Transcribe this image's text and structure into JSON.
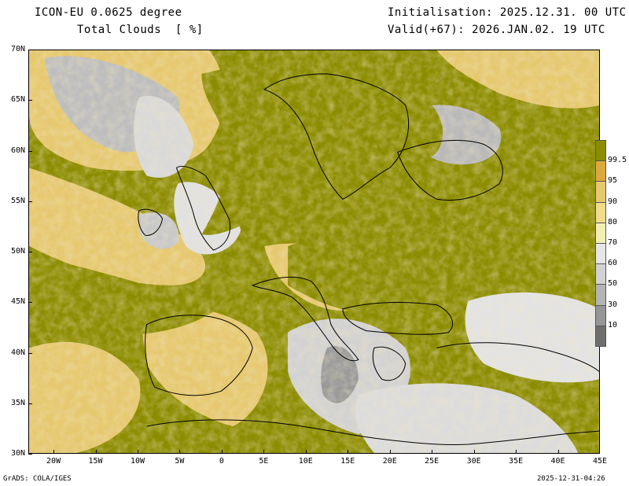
{
  "header": {
    "model": "ICON-EU 0.0625 degree",
    "variable": "Total Clouds  [ %]",
    "initialisation": "Initialisation: 2025.12.31. 00 UTC",
    "valid": "Valid(+67): 2026.JAN.02. 19 UTC"
  },
  "axes": {
    "lat_labels": [
      "70N",
      "65N",
      "60N",
      "55N",
      "50N",
      "45N",
      "40N",
      "35N",
      "30N"
    ],
    "lat_values": [
      70,
      65,
      60,
      55,
      50,
      45,
      40,
      35,
      30
    ],
    "lon_labels": [
      "20W",
      "15W",
      "10W",
      "5W",
      "0",
      "5E",
      "10E",
      "15E",
      "20E",
      "25E",
      "30E",
      "35E",
      "40E",
      "45E"
    ],
    "lon_values": [
      -20,
      -15,
      -10,
      -5,
      0,
      5,
      10,
      15,
      20,
      25,
      30,
      35,
      40,
      45
    ],
    "lat_range": [
      30,
      70
    ],
    "lon_range": [
      -23,
      45
    ]
  },
  "colorbar": {
    "levels": [
      "10",
      "30",
      "50",
      "60",
      "70",
      "80",
      "90",
      "95",
      "99.5"
    ],
    "colors": [
      "#6e6e6e",
      "#969696",
      "#b4b4b4",
      "#d2d2d2",
      "#e6e6e6",
      "#f0f0b4",
      "#f0dc8c",
      "#e6c86e",
      "#dcaa3c",
      "#8c8c00"
    ]
  },
  "footer": {
    "left": "GrADS: COLA/IGES",
    "right": "2025-12-31-04:26"
  }
}
